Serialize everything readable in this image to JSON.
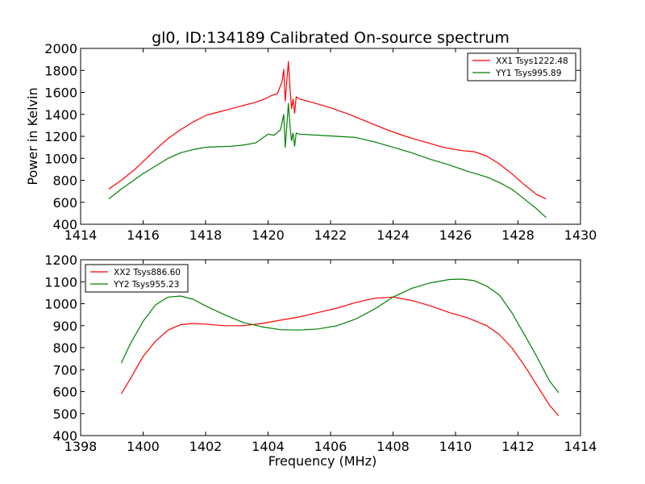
{
  "title": "gl0, ID:134189 Calibrated On-source spectrum",
  "chart_data": [
    {
      "type": "line",
      "ylabel": "Power in Kelvin",
      "xlabel": "",
      "xlim": [
        1414,
        1430
      ],
      "ylim": [
        400,
        2000
      ],
      "xticks": [
        1414,
        1416,
        1418,
        1420,
        1422,
        1424,
        1426,
        1428,
        1430
      ],
      "yticks": [
        400,
        600,
        800,
        1000,
        1200,
        1400,
        1600,
        1800,
        2000
      ],
      "grid": false,
      "legend_position": "top-right",
      "series": [
        {
          "name": "XX1 Tsys1222.48",
          "color": "#ff0000",
          "points": [
            [
              1414.9,
              720
            ],
            [
              1415.3,
              800
            ],
            [
              1415.7,
              890
            ],
            [
              1416,
              970
            ],
            [
              1416.4,
              1080
            ],
            [
              1416.8,
              1180
            ],
            [
              1417.2,
              1260
            ],
            [
              1417.6,
              1330
            ],
            [
              1418,
              1390
            ],
            [
              1418.4,
              1420
            ],
            [
              1418.8,
              1450
            ],
            [
              1419.2,
              1480
            ],
            [
              1419.6,
              1510
            ],
            [
              1419.9,
              1540
            ],
            [
              1420.1,
              1570
            ],
            [
              1420.3,
              1590
            ],
            [
              1420.45,
              1700
            ],
            [
              1420.5,
              1810
            ],
            [
              1420.55,
              1520
            ],
            [
              1420.6,
              1700
            ],
            [
              1420.65,
              1880
            ],
            [
              1420.7,
              1650
            ],
            [
              1420.75,
              1450
            ],
            [
              1420.8,
              1540
            ],
            [
              1420.85,
              1410
            ],
            [
              1420.9,
              1560
            ],
            [
              1421,
              1540
            ],
            [
              1421.4,
              1510
            ],
            [
              1422,
              1460
            ],
            [
              1422.6,
              1400
            ],
            [
              1423.2,
              1330
            ],
            [
              1423.8,
              1260
            ],
            [
              1424.4,
              1200
            ],
            [
              1425,
              1150
            ],
            [
              1425.6,
              1100
            ],
            [
              1426.2,
              1070
            ],
            [
              1426.6,
              1060
            ],
            [
              1427,
              1020
            ],
            [
              1427.4,
              950
            ],
            [
              1427.8,
              860
            ],
            [
              1428.2,
              760
            ],
            [
              1428.6,
              670
            ],
            [
              1428.9,
              630
            ]
          ]
        },
        {
          "name": "YY1 Tsys995.89",
          "color": "#008000",
          "points": [
            [
              1414.9,
              630
            ],
            [
              1415.3,
              720
            ],
            [
              1415.7,
              800
            ],
            [
              1416,
              860
            ],
            [
              1416.4,
              930
            ],
            [
              1416.8,
              1000
            ],
            [
              1417.2,
              1050
            ],
            [
              1417.6,
              1080
            ],
            [
              1418,
              1100
            ],
            [
              1418.4,
              1105
            ],
            [
              1418.8,
              1110
            ],
            [
              1419.2,
              1120
            ],
            [
              1419.6,
              1140
            ],
            [
              1419.8,
              1180
            ],
            [
              1420,
              1220
            ],
            [
              1420.2,
              1210
            ],
            [
              1420.4,
              1260
            ],
            [
              1420.5,
              1400
            ],
            [
              1420.55,
              1100
            ],
            [
              1420.6,
              1290
            ],
            [
              1420.65,
              1500
            ],
            [
              1420.7,
              1300
            ],
            [
              1420.75,
              1160
            ],
            [
              1420.8,
              1230
            ],
            [
              1420.85,
              1110
            ],
            [
              1420.9,
              1230
            ],
            [
              1421,
              1220
            ],
            [
              1421.6,
              1210
            ],
            [
              1422.2,
              1200
            ],
            [
              1422.8,
              1190
            ],
            [
              1423.4,
              1150
            ],
            [
              1424,
              1100
            ],
            [
              1424.6,
              1050
            ],
            [
              1425.2,
              990
            ],
            [
              1425.8,
              940
            ],
            [
              1426.4,
              880
            ],
            [
              1427,
              830
            ],
            [
              1427.4,
              780
            ],
            [
              1427.8,
              720
            ],
            [
              1428.2,
              630
            ],
            [
              1428.6,
              540
            ],
            [
              1428.9,
              460
            ]
          ]
        }
      ]
    },
    {
      "type": "line",
      "ylabel": "",
      "xlabel": "Frequency (MHz)",
      "xlim": [
        1398,
        1414
      ],
      "ylim": [
        400,
        1200
      ],
      "xticks": [
        1398,
        1400,
        1402,
        1404,
        1406,
        1408,
        1410,
        1412,
        1414
      ],
      "yticks": [
        400,
        500,
        600,
        700,
        800,
        900,
        1000,
        1100,
        1200
      ],
      "grid": false,
      "legend_position": "top-left",
      "series": [
        {
          "name": "XX2 Tsys886.60",
          "color": "#ff0000",
          "points": [
            [
              1399.3,
              590
            ],
            [
              1399.6,
              660
            ],
            [
              1400,
              760
            ],
            [
              1400.4,
              830
            ],
            [
              1400.8,
              880
            ],
            [
              1401.2,
              905
            ],
            [
              1401.6,
              910
            ],
            [
              1402,
              907
            ],
            [
              1402.6,
              900
            ],
            [
              1403.2,
              900
            ],
            [
              1403.8,
              910
            ],
            [
              1404.4,
              925
            ],
            [
              1405,
              940
            ],
            [
              1405.6,
              960
            ],
            [
              1406.2,
              980
            ],
            [
              1406.8,
              1005
            ],
            [
              1407.4,
              1025
            ],
            [
              1408,
              1030
            ],
            [
              1408.6,
              1015
            ],
            [
              1409.2,
              990
            ],
            [
              1409.8,
              960
            ],
            [
              1410.4,
              935
            ],
            [
              1411,
              900
            ],
            [
              1411.4,
              860
            ],
            [
              1411.8,
              800
            ],
            [
              1412.2,
              720
            ],
            [
              1412.6,
              630
            ],
            [
              1413,
              540
            ],
            [
              1413.3,
              490
            ]
          ]
        },
        {
          "name": "YY2 Tsys955.23",
          "color": "#008000",
          "points": [
            [
              1399.3,
              730
            ],
            [
              1399.6,
              820
            ],
            [
              1400,
              920
            ],
            [
              1400.4,
              995
            ],
            [
              1400.8,
              1030
            ],
            [
              1401.2,
              1035
            ],
            [
              1401.6,
              1020
            ],
            [
              1402,
              990
            ],
            [
              1402.6,
              950
            ],
            [
              1403.2,
              915
            ],
            [
              1403.8,
              895
            ],
            [
              1404.4,
              882
            ],
            [
              1405,
              880
            ],
            [
              1405.6,
              885
            ],
            [
              1406.2,
              900
            ],
            [
              1406.8,
              930
            ],
            [
              1407.4,
              975
            ],
            [
              1408,
              1030
            ],
            [
              1408.6,
              1070
            ],
            [
              1409.2,
              1095
            ],
            [
              1409.8,
              1110
            ],
            [
              1410.2,
              1112
            ],
            [
              1410.6,
              1105
            ],
            [
              1411,
              1080
            ],
            [
              1411.4,
              1040
            ],
            [
              1411.8,
              960
            ],
            [
              1412.2,
              860
            ],
            [
              1412.6,
              760
            ],
            [
              1413,
              650
            ],
            [
              1413.3,
              595
            ]
          ]
        }
      ]
    }
  ]
}
